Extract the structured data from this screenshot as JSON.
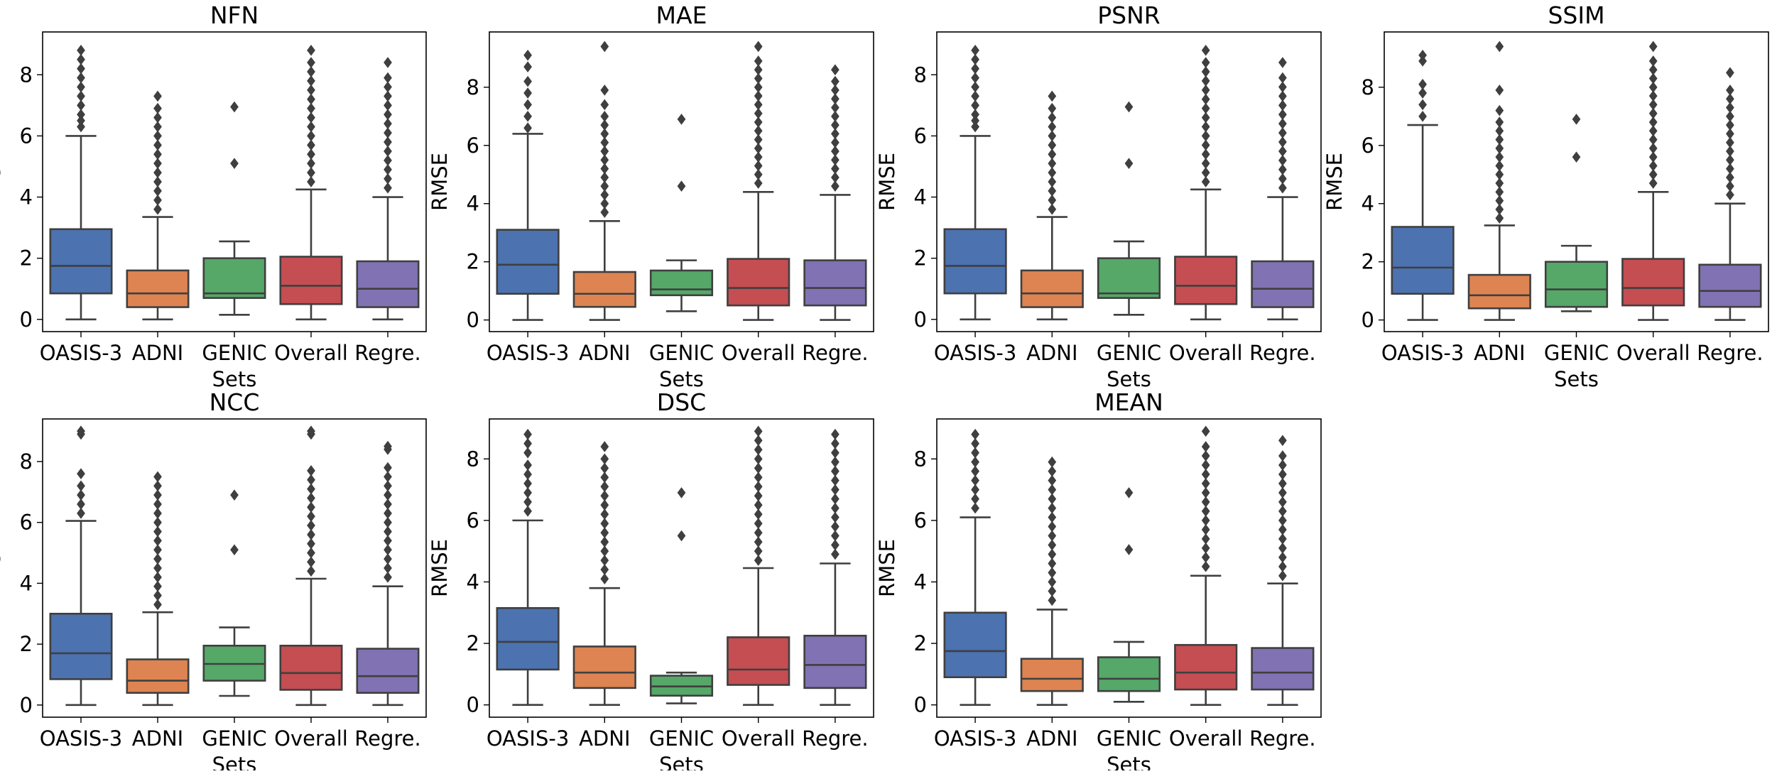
{
  "figure": {
    "description_free": true
  },
  "chart_data": [
    {
      "type": "box",
      "title": "NFN",
      "xlabel": "Sets",
      "ylabel": "RMSE",
      "ylim": [
        -0.4,
        9.4
      ],
      "yticks": [
        0,
        2,
        4,
        6,
        8
      ],
      "categories": [
        "OASIS-3",
        "ADNI",
        "GENIC",
        "Overall",
        "Regre."
      ],
      "colors": [
        "#4c72b0",
        "#dd8452",
        "#55a868",
        "#c44e52",
        "#8172b3"
      ],
      "boxes": [
        {
          "whisker_low": 0.0,
          "q1": 0.85,
          "median": 1.75,
          "q3": 2.95,
          "whisker_high": 6.0,
          "outliers": [
            6.3,
            6.5,
            6.7,
            7.0,
            7.3,
            7.6,
            7.9,
            8.2,
            8.5,
            8.8
          ]
        },
        {
          "whisker_low": 0.0,
          "q1": 0.4,
          "median": 0.85,
          "q3": 1.6,
          "whisker_high": 3.35,
          "outliers": [
            3.6,
            3.9,
            4.2,
            4.5,
            4.8,
            5.1,
            5.4,
            5.7,
            6.0,
            6.3,
            6.6,
            6.9,
            7.3
          ]
        },
        {
          "whisker_low": 0.15,
          "q1": 0.7,
          "median": 0.85,
          "q3": 2.0,
          "whisker_high": 2.55,
          "outliers": [
            5.1,
            6.95
          ]
        },
        {
          "whisker_low": 0.0,
          "q1": 0.5,
          "median": 1.1,
          "q3": 2.05,
          "whisker_high": 4.25,
          "outliers": [
            4.5,
            4.8,
            5.1,
            5.4,
            5.7,
            6.0,
            6.3,
            6.6,
            6.9,
            7.2,
            7.5,
            7.8,
            8.1,
            8.4,
            8.8
          ]
        },
        {
          "whisker_low": 0.0,
          "q1": 0.4,
          "median": 1.0,
          "q3": 1.9,
          "whisker_high": 4.0,
          "outliers": [
            4.3,
            4.6,
            4.9,
            5.2,
            5.5,
            5.8,
            6.1,
            6.4,
            6.7,
            7.0,
            7.3,
            7.6,
            7.9,
            8.4
          ]
        }
      ]
    },
    {
      "type": "box",
      "title": "MAE",
      "xlabel": "Sets",
      "ylabel": "RMSE",
      "ylim": [
        -0.4,
        9.9
      ],
      "yticks": [
        0,
        2,
        4,
        6,
        8
      ],
      "categories": [
        "OASIS-3",
        "ADNI",
        "GENIC",
        "Overall",
        "Regre."
      ],
      "colors": [
        "#4c72b0",
        "#dd8452",
        "#55a868",
        "#c44e52",
        "#8172b3"
      ],
      "boxes": [
        {
          "whisker_low": 0.0,
          "q1": 0.9,
          "median": 1.9,
          "q3": 3.1,
          "whisker_high": 6.4,
          "outliers": [
            6.6,
            7.0,
            7.4,
            7.8,
            8.2,
            8.7,
            9.1
          ]
        },
        {
          "whisker_low": 0.0,
          "q1": 0.45,
          "median": 0.9,
          "q3": 1.65,
          "whisker_high": 3.4,
          "outliers": [
            3.7,
            4.0,
            4.3,
            4.6,
            4.9,
            5.2,
            5.5,
            5.8,
            6.1,
            6.4,
            6.7,
            7.0,
            7.4,
            7.9,
            9.4
          ]
        },
        {
          "whisker_low": 0.3,
          "q1": 0.85,
          "median": 1.05,
          "q3": 1.7,
          "whisker_high": 2.05,
          "outliers": [
            4.6,
            6.9
          ]
        },
        {
          "whisker_low": 0.0,
          "q1": 0.5,
          "median": 1.1,
          "q3": 2.1,
          "whisker_high": 4.4,
          "outliers": [
            4.7,
            5.0,
            5.3,
            5.6,
            5.9,
            6.2,
            6.5,
            6.8,
            7.1,
            7.4,
            7.7,
            8.0,
            8.3,
            8.6,
            8.9,
            9.4
          ]
        },
        {
          "whisker_low": 0.0,
          "q1": 0.5,
          "median": 1.1,
          "q3": 2.05,
          "whisker_high": 4.3,
          "outliers": [
            4.6,
            4.9,
            5.2,
            5.5,
            5.8,
            6.1,
            6.4,
            6.7,
            7.0,
            7.3,
            7.6,
            7.9,
            8.2,
            8.6
          ]
        }
      ]
    },
    {
      "type": "box",
      "title": "PSNR",
      "xlabel": "Sets",
      "ylabel": "RMSE",
      "ylim": [
        -0.4,
        9.4
      ],
      "yticks": [
        0,
        2,
        4,
        6,
        8
      ],
      "categories": [
        "OASIS-3",
        "ADNI",
        "GENIC",
        "Overall",
        "Regre."
      ],
      "colors": [
        "#4c72b0",
        "#dd8452",
        "#55a868",
        "#c44e52",
        "#8172b3"
      ],
      "boxes": [
        {
          "whisker_low": 0.0,
          "q1": 0.85,
          "median": 1.75,
          "q3": 2.95,
          "whisker_high": 6.0,
          "outliers": [
            6.3,
            6.5,
            6.7,
            7.0,
            7.3,
            7.6,
            7.9,
            8.2,
            8.5,
            8.8
          ]
        },
        {
          "whisker_low": 0.0,
          "q1": 0.4,
          "median": 0.85,
          "q3": 1.6,
          "whisker_high": 3.35,
          "outliers": [
            3.6,
            3.9,
            4.2,
            4.5,
            4.8,
            5.1,
            5.4,
            5.7,
            6.0,
            6.3,
            6.6,
            6.9,
            7.3
          ]
        },
        {
          "whisker_low": 0.15,
          "q1": 0.7,
          "median": 0.85,
          "q3": 2.0,
          "whisker_high": 2.55,
          "outliers": [
            5.1,
            6.95
          ]
        },
        {
          "whisker_low": 0.0,
          "q1": 0.5,
          "median": 1.1,
          "q3": 2.05,
          "whisker_high": 4.25,
          "outliers": [
            4.5,
            4.8,
            5.1,
            5.4,
            5.7,
            6.0,
            6.3,
            6.6,
            6.9,
            7.2,
            7.5,
            7.8,
            8.1,
            8.4,
            8.8
          ]
        },
        {
          "whisker_low": 0.0,
          "q1": 0.4,
          "median": 1.0,
          "q3": 1.9,
          "whisker_high": 4.0,
          "outliers": [
            4.3,
            4.6,
            4.9,
            5.2,
            5.5,
            5.8,
            6.1,
            6.4,
            6.7,
            7.0,
            7.3,
            7.6,
            7.9,
            8.4
          ]
        }
      ]
    },
    {
      "type": "box",
      "title": "SSIM",
      "xlabel": "Sets",
      "ylabel": "RMSE",
      "ylim": [
        -0.4,
        9.9
      ],
      "yticks": [
        0,
        2,
        4,
        6,
        8
      ],
      "categories": [
        "OASIS-3",
        "ADNI",
        "GENIC",
        "Overall",
        "Regre."
      ],
      "colors": [
        "#4c72b0",
        "#dd8452",
        "#55a868",
        "#c44e52",
        "#8172b3"
      ],
      "boxes": [
        {
          "whisker_low": 0.0,
          "q1": 0.9,
          "median": 1.8,
          "q3": 3.2,
          "whisker_high": 6.7,
          "outliers": [
            7.0,
            7.4,
            7.8,
            8.1,
            8.9,
            9.1
          ]
        },
        {
          "whisker_low": 0.0,
          "q1": 0.4,
          "median": 0.85,
          "q3": 1.55,
          "whisker_high": 3.25,
          "outliers": [
            3.5,
            3.8,
            4.1,
            4.4,
            4.7,
            5.0,
            5.3,
            5.6,
            5.9,
            6.2,
            6.5,
            6.8,
            7.2,
            7.9,
            9.4
          ]
        },
        {
          "whisker_low": 0.3,
          "q1": 0.45,
          "median": 1.05,
          "q3": 2.0,
          "whisker_high": 2.55,
          "outliers": [
            5.6,
            6.9
          ]
        },
        {
          "whisker_low": 0.0,
          "q1": 0.5,
          "median": 1.1,
          "q3": 2.1,
          "whisker_high": 4.4,
          "outliers": [
            4.7,
            5.0,
            5.3,
            5.6,
            5.9,
            6.2,
            6.5,
            6.8,
            7.1,
            7.4,
            7.7,
            8.0,
            8.3,
            8.6,
            8.9,
            9.4
          ]
        },
        {
          "whisker_low": 0.0,
          "q1": 0.45,
          "median": 1.0,
          "q3": 1.9,
          "whisker_high": 4.0,
          "outliers": [
            4.3,
            4.6,
            4.9,
            5.2,
            5.5,
            5.8,
            6.1,
            6.4,
            6.7,
            7.0,
            7.3,
            7.6,
            7.9,
            8.5
          ]
        }
      ]
    },
    {
      "type": "box",
      "title": "NCC",
      "xlabel": "Sets",
      "ylabel": "RMSE",
      "ylim": [
        -0.4,
        9.4
      ],
      "yticks": [
        0,
        2,
        4,
        6,
        8
      ],
      "categories": [
        "OASIS-3",
        "ADNI",
        "GENIC",
        "Overall",
        "Regre."
      ],
      "colors": [
        "#4c72b0",
        "#dd8452",
        "#55a868",
        "#c44e52",
        "#8172b3"
      ],
      "boxes": [
        {
          "whisker_low": 0.0,
          "q1": 0.85,
          "median": 1.7,
          "q3": 3.0,
          "whisker_high": 6.05,
          "outliers": [
            6.3,
            6.6,
            6.9,
            7.2,
            7.6,
            8.9,
            9.0
          ]
        },
        {
          "whisker_low": 0.0,
          "q1": 0.4,
          "median": 0.8,
          "q3": 1.5,
          "whisker_high": 3.05,
          "outliers": [
            3.3,
            3.6,
            3.9,
            4.2,
            4.5,
            4.8,
            5.1,
            5.4,
            5.7,
            6.0,
            6.3,
            6.6,
            6.9,
            7.2,
            7.5
          ]
        },
        {
          "whisker_low": 0.3,
          "q1": 0.8,
          "median": 1.35,
          "q3": 1.95,
          "whisker_high": 2.55,
          "outliers": [
            5.1,
            6.9
          ]
        },
        {
          "whisker_low": 0.0,
          "q1": 0.5,
          "median": 1.05,
          "q3": 1.95,
          "whisker_high": 4.15,
          "outliers": [
            4.4,
            4.7,
            5.0,
            5.3,
            5.6,
            5.9,
            6.2,
            6.5,
            6.8,
            7.1,
            7.4,
            7.7,
            8.9,
            9.0
          ]
        },
        {
          "whisker_low": 0.0,
          "q1": 0.4,
          "median": 0.95,
          "q3": 1.85,
          "whisker_high": 3.9,
          "outliers": [
            4.2,
            4.5,
            4.8,
            5.1,
            5.4,
            5.7,
            6.0,
            6.3,
            6.6,
            6.9,
            7.2,
            7.5,
            7.8,
            8.4,
            8.5
          ]
        }
      ]
    },
    {
      "type": "box",
      "title": "DSC",
      "xlabel": "Sets",
      "ylabel": "RMSE",
      "ylim": [
        -0.4,
        9.3
      ],
      "yticks": [
        0,
        2,
        4,
        6,
        8
      ],
      "categories": [
        "OASIS-3",
        "ADNI",
        "GENIC",
        "Overall",
        "Regre."
      ],
      "colors": [
        "#4c72b0",
        "#dd8452",
        "#55a868",
        "#c44e52",
        "#8172b3"
      ],
      "boxes": [
        {
          "whisker_low": 0.0,
          "q1": 1.15,
          "median": 2.05,
          "q3": 3.15,
          "whisker_high": 6.0,
          "outliers": [
            6.3,
            6.6,
            6.9,
            7.2,
            7.5,
            7.8,
            8.2,
            8.5,
            8.8
          ]
        },
        {
          "whisker_low": 0.0,
          "q1": 0.55,
          "median": 1.05,
          "q3": 1.9,
          "whisker_high": 3.8,
          "outliers": [
            4.1,
            4.4,
            4.7,
            5.0,
            5.3,
            5.6,
            5.9,
            6.2,
            6.5,
            6.8,
            7.1,
            7.4,
            7.7,
            8.0,
            8.4
          ]
        },
        {
          "whisker_low": 0.05,
          "q1": 0.3,
          "median": 0.6,
          "q3": 0.95,
          "whisker_high": 1.05,
          "outliers": [
            5.5,
            6.9
          ]
        },
        {
          "whisker_low": 0.0,
          "q1": 0.65,
          "median": 1.15,
          "q3": 2.2,
          "whisker_high": 4.45,
          "outliers": [
            4.7,
            5.0,
            5.3,
            5.6,
            5.9,
            6.2,
            6.5,
            6.8,
            7.1,
            7.4,
            7.7,
            8.0,
            8.3,
            8.6,
            8.9
          ]
        },
        {
          "whisker_low": 0.0,
          "q1": 0.55,
          "median": 1.3,
          "q3": 2.25,
          "whisker_high": 4.6,
          "outliers": [
            4.9,
            5.2,
            5.5,
            5.8,
            6.1,
            6.4,
            6.7,
            7.0,
            7.3,
            7.6,
            7.9,
            8.2,
            8.5,
            8.8
          ]
        }
      ]
    },
    {
      "type": "box",
      "title": "MEAN",
      "xlabel": "Sets",
      "ylabel": "RMSE",
      "ylim": [
        -0.4,
        9.3
      ],
      "yticks": [
        0,
        2,
        4,
        6,
        8
      ],
      "categories": [
        "OASIS-3",
        "ADNI",
        "GENIC",
        "Overall",
        "Regre."
      ],
      "colors": [
        "#4c72b0",
        "#dd8452",
        "#55a868",
        "#c44e52",
        "#8172b3"
      ],
      "boxes": [
        {
          "whisker_low": 0.0,
          "q1": 0.9,
          "median": 1.75,
          "q3": 3.0,
          "whisker_high": 6.1,
          "outliers": [
            6.4,
            6.7,
            7.0,
            7.3,
            7.6,
            7.9,
            8.2,
            8.5,
            8.8
          ]
        },
        {
          "whisker_low": 0.0,
          "q1": 0.45,
          "median": 0.85,
          "q3": 1.5,
          "whisker_high": 3.1,
          "outliers": [
            3.4,
            3.7,
            4.0,
            4.3,
            4.6,
            4.9,
            5.2,
            5.5,
            5.8,
            6.1,
            6.4,
            6.7,
            7.0,
            7.3,
            7.6,
            7.9
          ]
        },
        {
          "whisker_low": 0.1,
          "q1": 0.45,
          "median": 0.85,
          "q3": 1.55,
          "whisker_high": 2.05,
          "outliers": [
            5.05,
            6.9
          ]
        },
        {
          "whisker_low": 0.0,
          "q1": 0.5,
          "median": 1.05,
          "q3": 1.95,
          "whisker_high": 4.2,
          "outliers": [
            4.5,
            4.8,
            5.1,
            5.4,
            5.7,
            6.0,
            6.3,
            6.6,
            6.9,
            7.2,
            7.5,
            7.8,
            8.1,
            8.4,
            8.9
          ]
        },
        {
          "whisker_low": 0.0,
          "q1": 0.5,
          "median": 1.05,
          "q3": 1.85,
          "whisker_high": 3.95,
          "outliers": [
            4.2,
            4.5,
            4.8,
            5.1,
            5.4,
            5.7,
            6.0,
            6.3,
            6.6,
            6.9,
            7.2,
            7.5,
            7.8,
            8.1,
            8.6
          ]
        }
      ]
    }
  ]
}
